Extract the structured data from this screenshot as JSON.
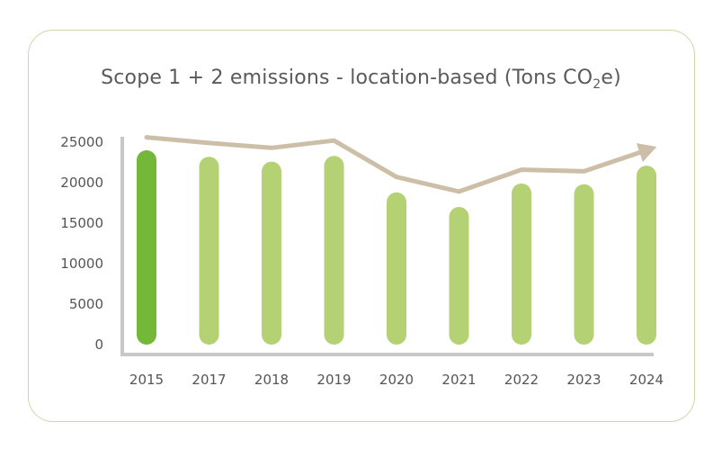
{
  "title": {
    "main": "Scope 1 + 2 emissions - location-based (Tons CO",
    "subscript": "2",
    "suffix": "e)"
  },
  "colors": {
    "bar_highlight": "#74b83a",
    "bar": "#b4d173",
    "trend_line": "#cdbfa7",
    "axis": "#c8c8c8",
    "border": "#c9d9a6"
  },
  "chart_data": {
    "type": "bar",
    "title": "Scope 1 + 2 emissions - location-based (Tons CO2e)",
    "categories": [
      "2015",
      "2017",
      "2018",
      "2019",
      "2020",
      "2021",
      "2022",
      "2023",
      "2024"
    ],
    "series": [
      {
        "values": [
          24000,
          23200,
          22600,
          23300,
          18800,
          17000,
          19900,
          19800,
          22100
        ]
      }
    ],
    "trend_line": {
      "values": [
        25600,
        24900,
        24300,
        25200,
        20700,
        18900,
        21600,
        21400,
        24000
      ],
      "arrow_end": true
    },
    "highlighted_category": "2015",
    "ylim": [
      0,
      25000
    ],
    "yticks": [
      0,
      5000,
      10000,
      15000,
      20000,
      25000
    ],
    "xlabel": "",
    "ylabel": "",
    "grid": false,
    "legend": "none"
  }
}
